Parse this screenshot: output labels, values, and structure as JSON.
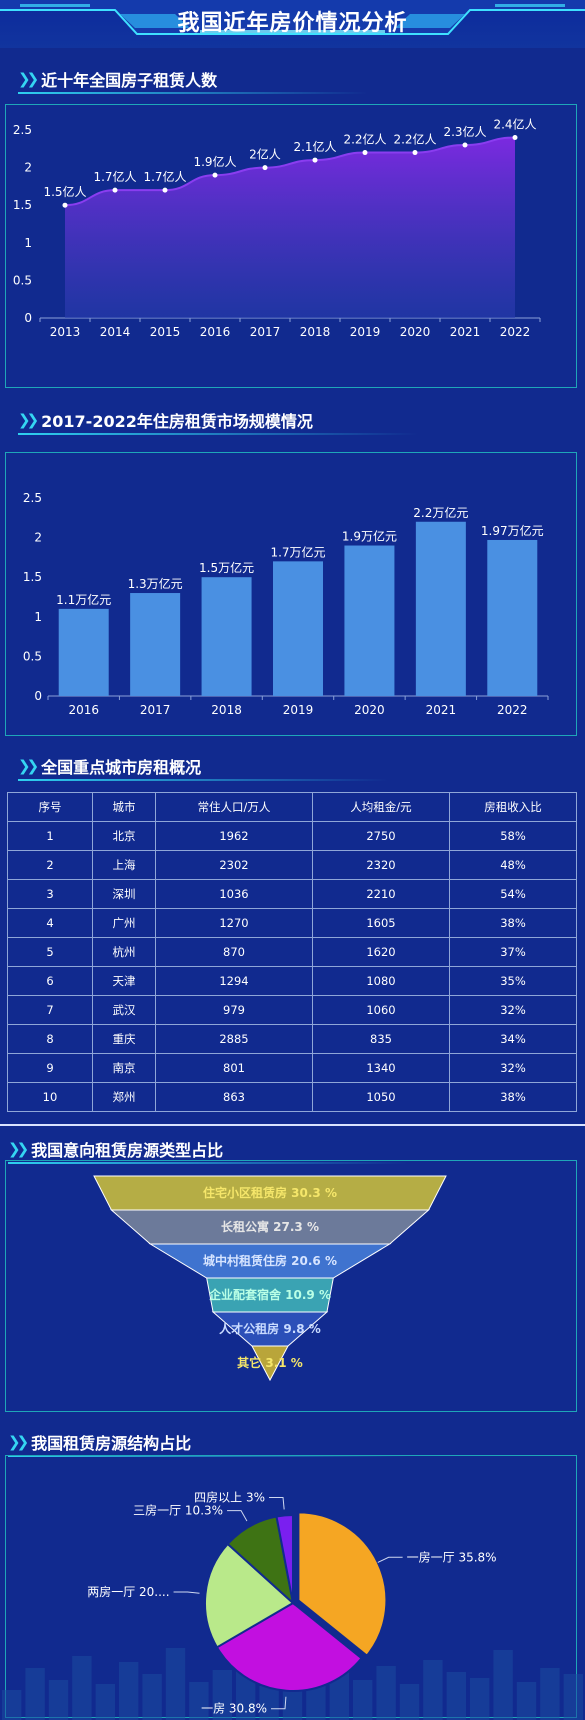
{
  "header": {
    "title": "我国近年房价情况分析"
  },
  "sections": {
    "rental_people": "近十年全国房子租赁人数",
    "market_scale": "2017-2022年住房租赁市场规模情况",
    "city_overview": "全国重点城市房租概况",
    "intended_types": "我国意向租赁房源类型占比",
    "structure": "我国租赁房源结构占比"
  },
  "chart_data": [
    {
      "type": "area",
      "x": [
        "2013",
        "2014",
        "2015",
        "2016",
        "2017",
        "2018",
        "2019",
        "2020",
        "2021",
        "2022"
      ],
      "values": [
        1.5,
        1.7,
        1.7,
        1.9,
        2.0,
        2.1,
        2.2,
        2.2,
        2.3,
        2.4
      ],
      "labels": [
        "1.5亿人",
        "1.7亿人",
        "1.7亿人",
        "1.9亿人",
        "2亿人",
        "2.1亿人",
        "2.2亿人",
        "2.2亿人",
        "2.3亿人",
        "2.4亿人"
      ],
      "ylim": [
        0,
        2.5
      ],
      "yticks": [
        "0",
        "0.5",
        "1",
        "1.5",
        "2",
        "2.5"
      ],
      "colors": {
        "top": "#7b2ae0",
        "bottom": "#2a3db0",
        "point": "#ffffff"
      }
    },
    {
      "type": "bar",
      "categories": [
        "2016",
        "2017",
        "2018",
        "2019",
        "2020",
        "2021",
        "2022"
      ],
      "values": [
        1.1,
        1.3,
        1.5,
        1.7,
        1.9,
        2.2,
        1.97
      ],
      "labels": [
        "1.1万亿元",
        "1.3万亿元",
        "1.5万亿元",
        "1.7万亿元",
        "1.9万亿元",
        "2.2万亿元",
        "1.97万亿元"
      ],
      "ylim": [
        0,
        2.5
      ],
      "yticks": [
        "0",
        "0.5",
        "1",
        "1.5",
        "2",
        "2.5"
      ],
      "colors": {
        "bar": "#4a90e2"
      }
    },
    {
      "type": "table",
      "columns": [
        "序号",
        "城市",
        "常住人口/万人",
        "人均租金/元",
        "房租收入比"
      ],
      "rows": [
        [
          "1",
          "北京",
          "1962",
          "2750",
          "58%"
        ],
        [
          "2",
          "上海",
          "2302",
          "2320",
          "48%"
        ],
        [
          "3",
          "深圳",
          "1036",
          "2210",
          "54%"
        ],
        [
          "4",
          "广州",
          "1270",
          "1605",
          "38%"
        ],
        [
          "5",
          "杭州",
          "870",
          "1620",
          "37%"
        ],
        [
          "6",
          "天津",
          "1294",
          "1080",
          "35%"
        ],
        [
          "7",
          "武汉",
          "979",
          "1060",
          "32%"
        ],
        [
          "8",
          "重庆",
          "2885",
          "835",
          "34%"
        ],
        [
          "9",
          "南京",
          "801",
          "1340",
          "32%"
        ],
        [
          "10",
          "郑州",
          "863",
          "1050",
          "38%"
        ]
      ]
    },
    {
      "type": "funnel",
      "items": [
        {
          "name": "住宅小区租赁房",
          "value": 30.3,
          "label": "住宅小区租赁房 30.3 %",
          "color": "#b5ad45",
          "text": "#f5e66a"
        },
        {
          "name": "长租公寓",
          "value": 27.3,
          "label": "长租公寓 27.3 %",
          "color": "#6c7a9a",
          "text": "#e6e6e6"
        },
        {
          "name": "城中村租赁住房",
          "value": 20.6,
          "label": "城中村租赁住房 20.6 %",
          "color": "#3f73cf",
          "text": "#d6e4ff"
        },
        {
          "name": "企业配套宿舍",
          "value": 10.9,
          "label": "企业配套宿舍 10.9 %",
          "color": "#3aa3b3",
          "text": "#b9ffe6"
        },
        {
          "name": "人才公租房",
          "value": 9.8,
          "label": "人才公租房 9.8 %",
          "color": "#2b4fb8",
          "text": "#c9dbff"
        },
        {
          "name": "其它",
          "value": 3.1,
          "label": "其它 3.1 %",
          "color": "#b9a53a",
          "text": "#f5e66a"
        }
      ]
    },
    {
      "type": "pie",
      "items": [
        {
          "name": "一房一厅",
          "value": 35.8,
          "label": "一房一厅 35.8%",
          "color": "#f5a623"
        },
        {
          "name": "一房",
          "value": 30.8,
          "label": "一房 30.8%",
          "color": "#c20fe0"
        },
        {
          "name": "两房一厅",
          "value": 20.1,
          "label": "两房一厅 20....",
          "color": "#b9e98a"
        },
        {
          "name": "三房一厅",
          "value": 10.3,
          "label": "三房一厅 10.3%",
          "color": "#3e7314"
        },
        {
          "name": "四房以上",
          "value": 3.0,
          "label": "四房以上 3%",
          "color": "#7a1ff0"
        }
      ]
    }
  ]
}
